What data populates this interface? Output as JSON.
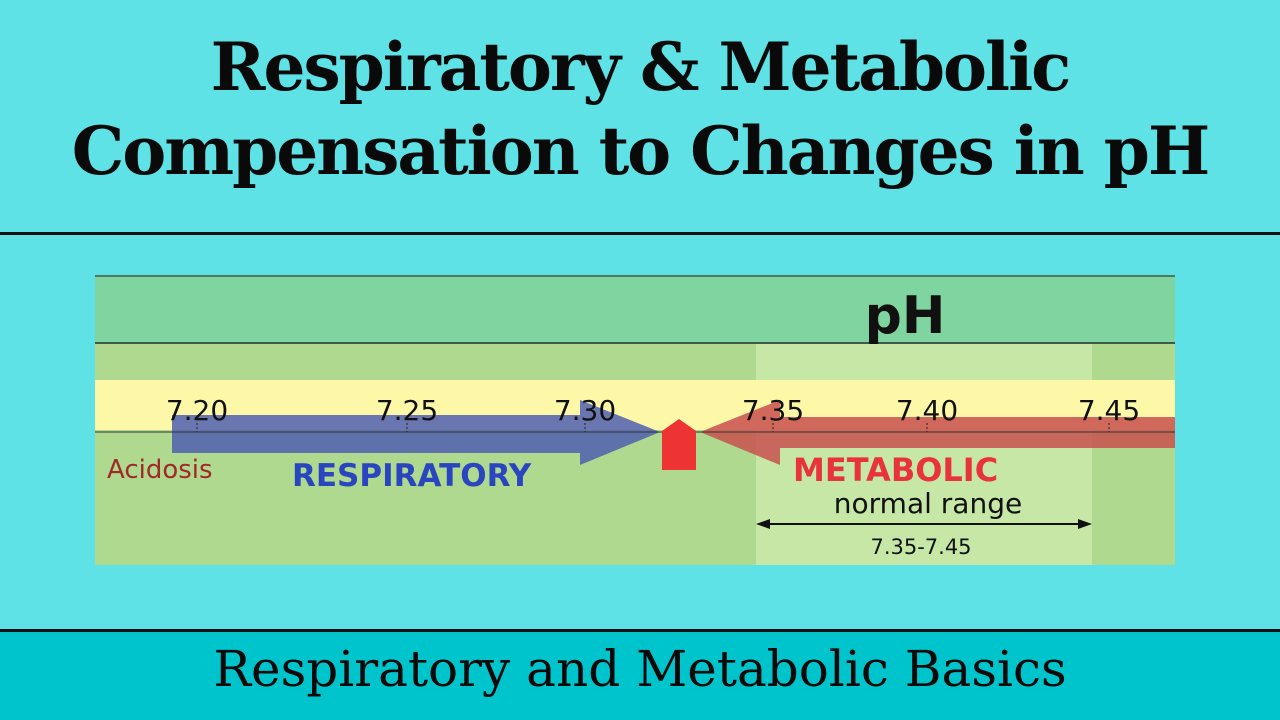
{
  "title": {
    "line1": "Respiratory & Metabolic",
    "line2": "Compensation to Changes in pH"
  },
  "diagram": {
    "header": "pH",
    "ticks": [
      "7.20",
      "7.25",
      "7.30",
      "7.35",
      "7.40",
      "7.45"
    ],
    "acidosis_label": "Acidosis",
    "respiratory_label": "RESPIRATORY",
    "metabolic_label": "METABOLIC",
    "normal_range_label": "normal range",
    "normal_range_value": "7.35-7.45",
    "colors": {
      "respiratory": "#4f5fb0",
      "metabolic": "#c8504f",
      "marker": "#ee3333",
      "header_band": "#7fd4a0",
      "yellow_band": "#fdf7a8"
    }
  },
  "subtitle": "Respiratory and Metabolic Basics"
}
